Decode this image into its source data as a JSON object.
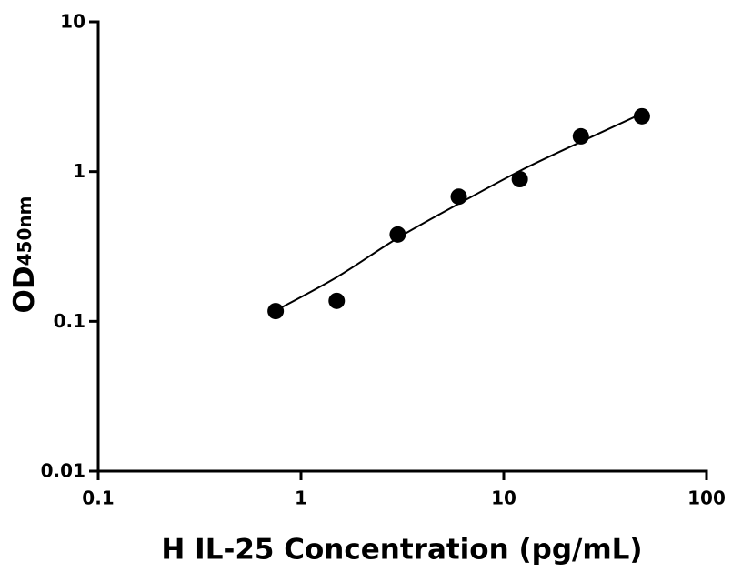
{
  "chart_data": {
    "type": "scatter",
    "x_label": "H IL-25 Concentration (pg/mL)",
    "y_label": "OD",
    "y_label_sub": "450nm",
    "xscale": "log",
    "yscale": "log",
    "xlim": [
      0.1,
      100
    ],
    "ylim": [
      0.01,
      10
    ],
    "xticks": [
      0.1,
      1,
      10,
      100
    ],
    "yticks": [
      0.01,
      0.1,
      1,
      10
    ],
    "series": [
      {
        "type": "scatter",
        "color": "#000000",
        "x": [
          0.75,
          1.5,
          3,
          6,
          12,
          24,
          48
        ],
        "values": [
          0.117,
          0.137,
          0.38,
          0.68,
          0.89,
          1.72,
          2.34
        ]
      },
      {
        "type": "line",
        "color": "#000000",
        "x": [
          0.75,
          1.5,
          3,
          6,
          12,
          24,
          48
        ],
        "values": [
          0.118,
          0.197,
          0.36,
          0.61,
          1.01,
          1.58,
          2.44
        ]
      }
    ]
  }
}
